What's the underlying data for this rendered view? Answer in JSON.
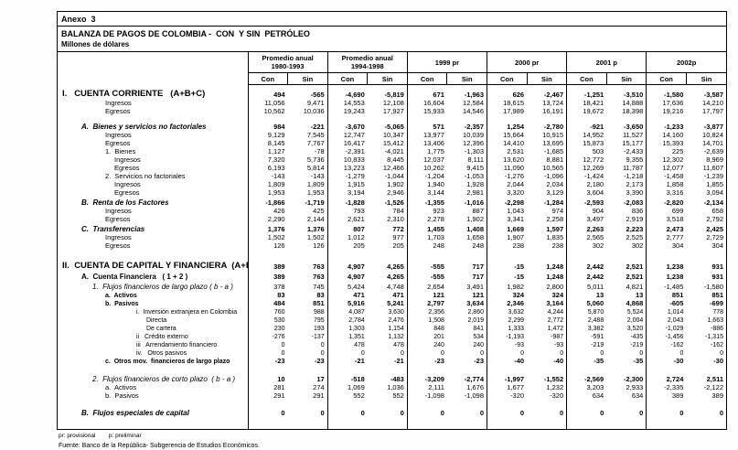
{
  "header": {
    "annex": "Anexo  3",
    "title": "BALANZA DE PAGOS DE COLOMBIA -  CON  Y SIN  PETRÓLEO",
    "units": "Millones de dólares"
  },
  "columns": {
    "groups": [
      {
        "label1": "Promedio anual",
        "label2": "1980-1993"
      },
      {
        "label1": "Promedio anual",
        "label2": "1994-1998"
      },
      {
        "label1": "1999 pr",
        "label2": ""
      },
      {
        "label1": "2000 pr",
        "label2": ""
      },
      {
        "label1": "2001 p",
        "label2": ""
      },
      {
        "label1": "2002p",
        "label2": ""
      }
    ],
    "sub": [
      "Con",
      "Sin"
    ]
  },
  "rows": [
    {
      "label": "I.   CUENTA CORRIENTE   (A+B+C)",
      "cls": "sec",
      "ind": 0,
      "bv": true,
      "values": [
        "494",
        "-565",
        "-4,690",
        "-5,819",
        "671",
        "-1,963",
        "626",
        "-2,467",
        "-1,251",
        "-3,510",
        "-1,580",
        "-3,587"
      ]
    },
    {
      "label": "Ingresos",
      "cls": "pl",
      "ind": 3,
      "values": [
        "11,056",
        "9,471",
        "14,553",
        "12,108",
        "16,604",
        "12,584",
        "18,615",
        "13,724",
        "18,421",
        "14,888",
        "17,636",
        "14,210"
      ]
    },
    {
      "label": "Egresos",
      "cls": "pl",
      "ind": 3,
      "values": [
        "10,562",
        "10,036",
        "19,243",
        "17,927",
        "15,933",
        "14,546",
        "17,989",
        "16,191",
        "19,672",
        "18,398",
        "19,216",
        "17,797"
      ]
    },
    {
      "spacer": true,
      "h": 6
    },
    {
      "label": "A.  Bienes y servicios no factoriales",
      "cls": "bi",
      "ind": 1,
      "bv": true,
      "values": [
        "984",
        "-221",
        "-3,670",
        "-5,065",
        "571",
        "-2,357",
        "1,254",
        "-2,780",
        "-921",
        "-3,650",
        "-1,233",
        "-3,877"
      ]
    },
    {
      "label": "Ingresos",
      "cls": "pl",
      "ind": 3,
      "values": [
        "9,129",
        "7,545",
        "12,747",
        "10,347",
        "13,977",
        "10,039",
        "15,664",
        "10,915",
        "14,952",
        "11,527",
        "14,160",
        "10,824"
      ]
    },
    {
      "label": "Egresos",
      "cls": "pl",
      "ind": 3,
      "values": [
        "8,145",
        "7,767",
        "16,417",
        "15,412",
        "13,406",
        "12,396",
        "14,410",
        "13,695",
        "15,873",
        "15,177",
        "15,393",
        "14,701"
      ]
    },
    {
      "label": "1.  Bienes",
      "cls": "pl",
      "ind": 3,
      "values": [
        "1,127",
        "-78",
        "-2,391",
        "-4,021",
        "1,775",
        "-1,303",
        "2,531",
        "-1,685",
        "503",
        "-2,433",
        "225",
        "-2,639"
      ]
    },
    {
      "label": "Ingresos",
      "cls": "pl",
      "ind": 4,
      "values": [
        "7,320",
        "5,736",
        "10,833",
        "8,445",
        "12,037",
        "8,111",
        "13,620",
        "8,881",
        "12,772",
        "9,355",
        "12,302",
        "8,969"
      ]
    },
    {
      "label": "Egresos",
      "cls": "pl",
      "ind": 4,
      "values": [
        "6,193",
        "5,814",
        "13,223",
        "12,466",
        "10,262",
        "9,415",
        "11,090",
        "10,565",
        "12,269",
        "11,787",
        "12,077",
        "11,607"
      ]
    },
    {
      "label": "2.  Servicios no factoriales",
      "cls": "pl",
      "ind": 3,
      "values": [
        "-143",
        "-143",
        "-1,279",
        "-1,044",
        "-1,204",
        "-1,053",
        "-1,276",
        "-1,096",
        "-1,424",
        "-1,218",
        "-1,458",
        "-1,239"
      ]
    },
    {
      "label": "Ingresos",
      "cls": "pl",
      "ind": 4,
      "values": [
        "1,809",
        "1,809",
        "1,915",
        "1,902",
        "1,940",
        "1,928",
        "2,044",
        "2,034",
        "2,180",
        "2,173",
        "1,858",
        "1,855"
      ]
    },
    {
      "label": "Egresos",
      "cls": "pl",
      "ind": 4,
      "values": [
        "1,953",
        "1,953",
        "3,194",
        "2,946",
        "3,144",
        "2,981",
        "3,320",
        "3,129",
        "3,604",
        "3,390",
        "3,316",
        "3,094"
      ]
    },
    {
      "label": "B.  Renta de los Factores",
      "cls": "bi",
      "ind": 1,
      "bv": true,
      "values": [
        "-1,866",
        "-1,719",
        "-1,828",
        "-1,526",
        "-1,355",
        "-1,016",
        "-2,298",
        "-1,284",
        "-2,593",
        "-2,083",
        "-2,820",
        "-2,134"
      ]
    },
    {
      "label": "Ingresos",
      "cls": "pl",
      "ind": 3,
      "values": [
        "426",
        "425",
        "793",
        "784",
        "923",
        "887",
        "1,043",
        "974",
        "904",
        "836",
        "699",
        "658"
      ]
    },
    {
      "label": "Egresos",
      "cls": "pl",
      "ind": 3,
      "values": [
        "2,290",
        "2,144",
        "2,621",
        "2,310",
        "2,278",
        "1,902",
        "3,341",
        "2,258",
        "3,497",
        "2,919",
        "3,518",
        "2,792"
      ]
    },
    {
      "label": "C.  Transferencias",
      "cls": "bi",
      "ind": 1,
      "bv": true,
      "values": [
        "1,376",
        "1,376",
        "807",
        "772",
        "1,455",
        "1,408",
        "1,669",
        "1,597",
        "2,263",
        "2,223",
        "2,473",
        "2,425"
      ]
    },
    {
      "label": "Ingresos",
      "cls": "pl",
      "ind": 3,
      "values": [
        "1,502",
        "1,502",
        "1,012",
        "977",
        "1,703",
        "1,658",
        "1,907",
        "1,835",
        "2,565",
        "2,525",
        "2,777",
        "2,729"
      ]
    },
    {
      "label": "Egresos",
      "cls": "pl",
      "ind": 3,
      "values": [
        "126",
        "126",
        "205",
        "205",
        "248",
        "248",
        "238",
        "238",
        "302",
        "302",
        "304",
        "304"
      ]
    },
    {
      "spacer": true,
      "h": 8
    },
    {
      "label": "II.  CUENTA DE CAPITAL Y FINANCIERA  (A+B)",
      "cls": "sec",
      "ind": 0,
      "bv": true,
      "values": [
        "389",
        "763",
        "4,907",
        "4,265",
        "-555",
        "717",
        "-15",
        "1,248",
        "2,442",
        "2,521",
        "1,238",
        "931"
      ]
    },
    {
      "label": "A.  Cuenta Financiera   ( 1 + 2 )",
      "cls": "b",
      "ind": 1,
      "bv": true,
      "values": [
        "389",
        "763",
        "4,907",
        "4,265",
        "-555",
        "717",
        "-15",
        "1,248",
        "2,442",
        "2,521",
        "1,238",
        "931"
      ]
    },
    {
      "label": "1.  Flujos financieros de largo plazo ( b - a )",
      "cls": "it",
      "ind": 2,
      "values": [
        "378",
        "745",
        "5,424",
        "4,748",
        "2,654",
        "3,491",
        "1,982",
        "2,800",
        "5,011",
        "4,821",
        "-1,485",
        "-1,580"
      ]
    },
    {
      "label": "a.  Activos",
      "cls": "bsm",
      "ind": 3,
      "bv": true,
      "values": [
        "83",
        "83",
        "471",
        "471",
        "121",
        "121",
        "324",
        "324",
        "13",
        "13",
        "851",
        "851"
      ]
    },
    {
      "label": "b.  Pasivos",
      "cls": "bsm",
      "ind": 3,
      "bv": true,
      "values": [
        "484",
        "851",
        "5,916",
        "5,241",
        "2,797",
        "3,634",
        "2,346",
        "3,164",
        "5,060",
        "4,868",
        "-605",
        "-699"
      ]
    },
    {
      "label": "i.  Inversión extranjera en Colombia",
      "cls": "det",
      "ind": 5,
      "values": [
        "760",
        "988",
        "4,087",
        "3,630",
        "2,356",
        "2,860",
        "3,632",
        "4,244",
        "5,870",
        "5,524",
        "1,014",
        "778"
      ]
    },
    {
      "label": "Directa",
      "cls": "det",
      "ind": 6,
      "values": [
        "530",
        "795",
        "2,784",
        "2,476",
        "1,508",
        "2,019",
        "2,299",
        "2,772",
        "2,488",
        "2,004",
        "2,043",
        "1,663"
      ]
    },
    {
      "label": "De cartera",
      "cls": "det",
      "ind": 6,
      "values": [
        "230",
        "193",
        "1,303",
        "1,154",
        "848",
        "841",
        "1,333",
        "1,472",
        "3,382",
        "3,520",
        "-1,029",
        "-886"
      ]
    },
    {
      "label": "ii   Crédito externo",
      "cls": "det",
      "ind": 5,
      "values": [
        "-276",
        "-137",
        "1,351",
        "1,132",
        "201",
        "534",
        "-1,193",
        "-987",
        "-591",
        "-435",
        "-1,456",
        "-1,315"
      ]
    },
    {
      "label": "iii   Arrendamiento financiero",
      "cls": "det",
      "ind": 5,
      "values": [
        "0",
        "0",
        "478",
        "478",
        "240",
        "240",
        "-93",
        "-93",
        "-219",
        "-219",
        "-162",
        "-162"
      ]
    },
    {
      "label": "iv.   Otros pasivos",
      "cls": "det",
      "ind": 5,
      "values": [
        "0",
        "0",
        "0",
        "0",
        "0",
        "0",
        "0",
        "0",
        "0",
        "0",
        "0",
        "0"
      ]
    },
    {
      "label": "c.  Otros mov.  financieros de largo plazo",
      "cls": "bsm",
      "ind": 3,
      "bv": true,
      "values": [
        "-23",
        "-23",
        "-21",
        "-21",
        "-23",
        "-23",
        "-40",
        "-40",
        "-35",
        "-35",
        "-30",
        "-30"
      ]
    },
    {
      "spacer": true,
      "h": 9
    },
    {
      "label": "2.  Flujos financieros de corto plazo  ( b - a )",
      "cls": "itb",
      "ind": 2,
      "bv": true,
      "values": [
        "10",
        "17",
        "-518",
        "-483",
        "-3,209",
        "-2,774",
        "-1,997",
        "-1,552",
        "-2,569",
        "-2,300",
        "2,724",
        "2,511"
      ]
    },
    {
      "label": "a.  Activos",
      "cls": "pl",
      "ind": 3,
      "values": [
        "281",
        "274",
        "1,069",
        "1,036",
        "2,111",
        "1,676",
        "1,677",
        "1,232",
        "3,203",
        "2,933",
        "-2,335",
        "-2,122"
      ]
    },
    {
      "label": "b.  Pasivos",
      "cls": "pl",
      "ind": 3,
      "values": [
        "291",
        "291",
        "552",
        "552",
        "-1,098",
        "-1,098",
        "-320",
        "-320",
        "634",
        "634",
        "389",
        "389"
      ]
    },
    {
      "spacer": true,
      "h": 8
    },
    {
      "label": "B.  Flujos especiales de capital",
      "cls": "bi",
      "ind": 1,
      "bv": true,
      "values": [
        "0",
        "0",
        "0",
        "0",
        "0",
        "0",
        "0",
        "0",
        "0",
        "0",
        "0",
        "0"
      ]
    },
    {
      "spacer": true,
      "h": 28
    }
  ],
  "footer": {
    "notes": "pr: provisional        p: preliminar",
    "source": "Fuente: Banco de la República- Subgerencia de Estudios Económicos."
  }
}
